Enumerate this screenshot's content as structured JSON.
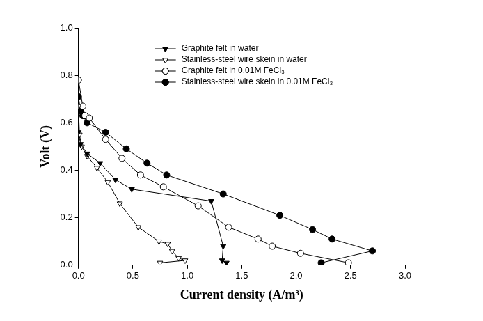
{
  "chart_data": {
    "type": "line",
    "x_label": "Current density (A/m³)",
    "y_label": "Volt (V)",
    "xlim": [
      0,
      3
    ],
    "xticks": [
      {
        "value": 0,
        "label": "0.0"
      },
      0.5,
      {
        "value": 1,
        "label": "1.0"
      },
      1.5,
      {
        "value": 2,
        "label": "2.0"
      },
      2.5,
      {
        "value": 3,
        "label": "3.0"
      }
    ],
    "ylim": [
      0,
      1
    ],
    "yticks": [
      {
        "value": 0,
        "label": "0.0"
      },
      0.2,
      0.4,
      0.6,
      0.8,
      {
        "value": 1,
        "label": "1.0"
      }
    ],
    "grid": false,
    "legend": "top",
    "series": [
      {
        "name": "Graphite felt in water",
        "color": "#000000",
        "marker": "triangle_down_filled",
        "line_style": "solid",
        "x": [
          0.0,
          0.02,
          0.08,
          0.2,
          0.34,
          0.49,
          1.22,
          1.33,
          1.32,
          1.36
        ],
        "values": [
          0.56,
          0.51,
          0.47,
          0.43,
          0.36,
          0.32,
          0.27,
          0.08,
          0.02,
          0.01
        ]
      },
      {
        "name": "Stainless-steel wire skein in water",
        "color": "#000000",
        "marker": "triangle_down_open",
        "line_style": "solid",
        "x": [
          0.0,
          0.01,
          0.03,
          0.08,
          0.17,
          0.27,
          0.38,
          0.55,
          0.74,
          0.82,
          0.86,
          0.92,
          0.98,
          0.75
        ],
        "values": [
          0.67,
          0.55,
          0.5,
          0.46,
          0.41,
          0.35,
          0.26,
          0.16,
          0.1,
          0.09,
          0.06,
          0.03,
          0.02,
          0.01
        ]
      },
      {
        "name": "Graphite felt in 0.01M FeCl₃",
        "color": "#000000",
        "marker": "circle_open",
        "line_style": "solid",
        "x": [
          0.0,
          0.04,
          0.06,
          0.1,
          0.25,
          0.4,
          0.57,
          0.78,
          1.1,
          1.38,
          1.65,
          1.78,
          2.04,
          2.48
        ],
        "values": [
          0.78,
          0.67,
          0.63,
          0.62,
          0.53,
          0.45,
          0.38,
          0.33,
          0.25,
          0.16,
          0.11,
          0.08,
          0.05,
          0.01
        ]
      },
      {
        "name": "Stainless-steel wire skein in 0.01M FeCl₃",
        "color": "#000000",
        "marker": "circle_filled",
        "line_style": "solid",
        "x": [
          0.0,
          0.02,
          0.04,
          0.08,
          0.25,
          0.44,
          0.63,
          0.81,
          1.33,
          1.85,
          2.15,
          2.33,
          2.7,
          2.23
        ],
        "values": [
          0.71,
          0.65,
          0.63,
          0.6,
          0.56,
          0.49,
          0.43,
          0.38,
          0.3,
          0.21,
          0.15,
          0.11,
          0.06,
          0.01
        ]
      }
    ]
  }
}
